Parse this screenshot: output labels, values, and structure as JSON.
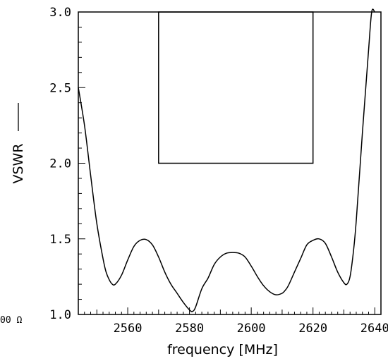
{
  "chart_data": {
    "type": "line",
    "title": "",
    "xlabel": "frequency [MHz]",
    "ylabel": "VSWR",
    "xlim": [
      2544,
      2642
    ],
    "ylim": [
      1.0,
      3.0
    ],
    "x_ticks": [
      2560,
      2580,
      2600,
      2620,
      2640
    ],
    "y_ticks": [
      1.0,
      1.5,
      2.0,
      2.5,
      3.0
    ],
    "y_tick_labels": [
      "1.0",
      "1.5",
      "2.0",
      "2.5",
      "3.0"
    ],
    "grid": false,
    "series": [
      {
        "name": "",
        "color": "#000000",
        "x": [
          2544,
          2546,
          2548,
          2550,
          2552,
          2553,
          2554,
          2555,
          2556,
          2558,
          2560,
          2562,
          2564,
          2566,
          2568,
          2570,
          2572,
          2574,
          2576,
          2578,
          2580,
          2581,
          2582,
          2584,
          2586,
          2588,
          2590,
          2592,
          2594,
          2596,
          2598,
          2600,
          2602,
          2604,
          2606,
          2608,
          2610,
          2611,
          2612,
          2614,
          2616,
          2618,
          2620,
          2622,
          2624,
          2626,
          2628,
          2630,
          2631,
          2632,
          2633,
          2634,
          2636,
          2638,
          2639,
          2640
        ],
        "y": [
          2.5,
          2.25,
          1.92,
          1.6,
          1.37,
          1.28,
          1.23,
          1.2,
          1.2,
          1.26,
          1.36,
          1.45,
          1.49,
          1.495,
          1.46,
          1.38,
          1.28,
          1.2,
          1.14,
          1.08,
          1.03,
          1.02,
          1.05,
          1.17,
          1.24,
          1.33,
          1.38,
          1.405,
          1.41,
          1.405,
          1.38,
          1.32,
          1.25,
          1.19,
          1.15,
          1.13,
          1.14,
          1.16,
          1.19,
          1.28,
          1.37,
          1.46,
          1.49,
          1.5,
          1.47,
          1.38,
          1.28,
          1.21,
          1.2,
          1.25,
          1.4,
          1.62,
          2.2,
          2.75,
          3.0,
          3.0
        ]
      }
    ],
    "spec_mask": {
      "x": [
        2570,
        2620
      ],
      "y": [
        2.0,
        3.0
      ],
      "color": "#000000"
    }
  },
  "ref_label": "00 Ω"
}
